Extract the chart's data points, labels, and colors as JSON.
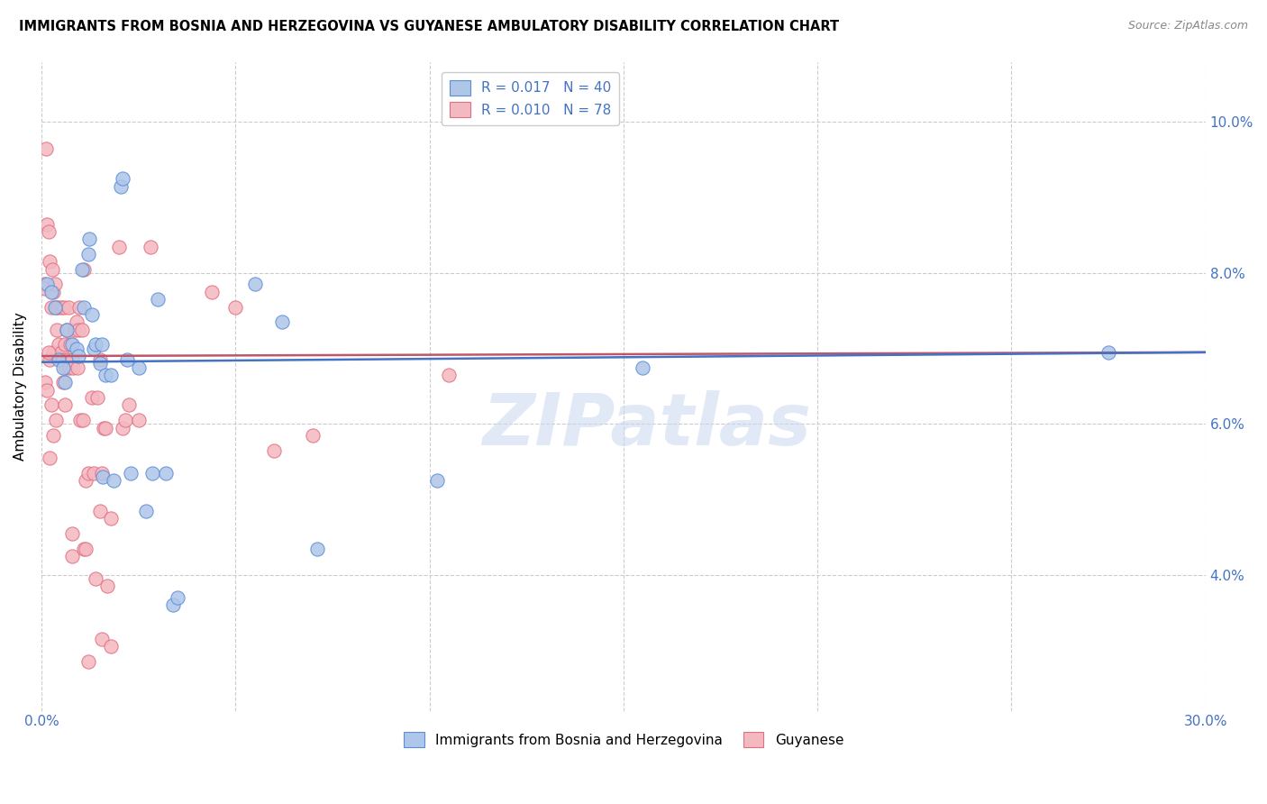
{
  "title": "IMMIGRANTS FROM BOSNIA AND HERZEGOVINA VS GUYANESE AMBULATORY DISABILITY CORRELATION CHART",
  "source": "Source: ZipAtlas.com",
  "ylabel": "Ambulatory Disability",
  "y_ticks": [
    4.0,
    6.0,
    8.0,
    10.0
  ],
  "y_tick_labels": [
    "4.0%",
    "6.0%",
    "8.0%",
    "10.0%"
  ],
  "x_range": [
    0.0,
    30.0
  ],
  "y_range": [
    2.2,
    10.8
  ],
  "watermark": "ZIPatlas",
  "legend_blue_label": "R = 0.017   N = 40",
  "legend_pink_label": "R = 0.010   N = 78",
  "legend_bottom_blue": "Immigrants from Bosnia and Herzegovina",
  "legend_bottom_pink": "Guyanese",
  "blue_color": "#AEC6E8",
  "pink_color": "#F4B8C1",
  "blue_edge_color": "#5B8DD9",
  "pink_edge_color": "#E07080",
  "blue_line_color": "#4472C4",
  "pink_line_color": "#C0566A",
  "blue_trend": [
    6.82,
    6.95
  ],
  "pink_trend": [
    6.9,
    6.95
  ],
  "blue_scatter": [
    [
      0.15,
      7.85
    ],
    [
      0.25,
      7.75
    ],
    [
      0.35,
      7.55
    ],
    [
      0.45,
      6.85
    ],
    [
      0.55,
      6.75
    ],
    [
      0.6,
      6.55
    ],
    [
      0.65,
      7.25
    ],
    [
      0.8,
      7.05
    ],
    [
      0.9,
      7.0
    ],
    [
      0.95,
      6.9
    ],
    [
      1.05,
      8.05
    ],
    [
      1.1,
      7.55
    ],
    [
      1.2,
      8.25
    ],
    [
      1.22,
      8.45
    ],
    [
      1.3,
      7.45
    ],
    [
      1.35,
      7.0
    ],
    [
      1.4,
      7.05
    ],
    [
      1.5,
      6.8
    ],
    [
      1.55,
      7.05
    ],
    [
      1.58,
      5.3
    ],
    [
      1.65,
      6.65
    ],
    [
      1.8,
      6.65
    ],
    [
      1.85,
      5.25
    ],
    [
      2.05,
      9.15
    ],
    [
      2.1,
      9.25
    ],
    [
      2.2,
      6.85
    ],
    [
      2.3,
      5.35
    ],
    [
      2.5,
      6.75
    ],
    [
      2.7,
      4.85
    ],
    [
      2.85,
      5.35
    ],
    [
      3.0,
      7.65
    ],
    [
      3.2,
      5.35
    ],
    [
      3.4,
      3.6
    ],
    [
      3.5,
      3.7
    ],
    [
      5.5,
      7.85
    ],
    [
      6.2,
      7.35
    ],
    [
      7.1,
      4.35
    ],
    [
      10.2,
      5.25
    ],
    [
      15.5,
      6.75
    ],
    [
      27.5,
      6.95
    ]
  ],
  "pink_scatter": [
    [
      0.08,
      7.85
    ],
    [
      0.1,
      7.8
    ],
    [
      0.12,
      9.65
    ],
    [
      0.15,
      8.65
    ],
    [
      0.18,
      8.55
    ],
    [
      0.2,
      8.15
    ],
    [
      0.22,
      6.85
    ],
    [
      0.25,
      7.55
    ],
    [
      0.28,
      8.05
    ],
    [
      0.3,
      7.75
    ],
    [
      0.3,
      6.95
    ],
    [
      0.35,
      7.85
    ],
    [
      0.38,
      7.55
    ],
    [
      0.4,
      7.25
    ],
    [
      0.42,
      7.55
    ],
    [
      0.45,
      7.05
    ],
    [
      0.5,
      6.95
    ],
    [
      0.52,
      7.55
    ],
    [
      0.55,
      6.85
    ],
    [
      0.58,
      7.55
    ],
    [
      0.6,
      7.05
    ],
    [
      0.62,
      6.75
    ],
    [
      0.65,
      7.25
    ],
    [
      0.68,
      6.85
    ],
    [
      0.7,
      7.55
    ],
    [
      0.72,
      6.75
    ],
    [
      0.75,
      7.05
    ],
    [
      0.78,
      4.55
    ],
    [
      0.8,
      6.85
    ],
    [
      0.82,
      6.75
    ],
    [
      0.85,
      7.25
    ],
    [
      0.9,
      7.35
    ],
    [
      0.92,
      6.75
    ],
    [
      0.95,
      7.25
    ],
    [
      0.98,
      7.55
    ],
    [
      1.0,
      6.05
    ],
    [
      1.05,
      7.25
    ],
    [
      1.08,
      6.05
    ],
    [
      1.1,
      8.05
    ],
    [
      1.15,
      5.25
    ],
    [
      1.2,
      5.35
    ],
    [
      1.3,
      6.35
    ],
    [
      1.35,
      5.35
    ],
    [
      1.4,
      3.95
    ],
    [
      1.45,
      6.35
    ],
    [
      1.5,
      6.85
    ],
    [
      1.55,
      5.35
    ],
    [
      1.6,
      5.95
    ],
    [
      1.65,
      5.95
    ],
    [
      1.7,
      3.85
    ],
    [
      2.0,
      8.35
    ],
    [
      2.1,
      5.95
    ],
    [
      2.15,
      6.05
    ],
    [
      2.25,
      6.25
    ],
    [
      2.8,
      8.35
    ],
    [
      4.4,
      7.75
    ],
    [
      5.0,
      7.55
    ],
    [
      6.0,
      5.65
    ],
    [
      7.0,
      5.85
    ],
    [
      10.5,
      6.65
    ],
    [
      0.18,
      6.95
    ],
    [
      0.25,
      6.25
    ],
    [
      0.3,
      5.85
    ],
    [
      0.38,
      6.05
    ],
    [
      0.8,
      4.25
    ],
    [
      1.1,
      4.35
    ],
    [
      1.15,
      4.35
    ],
    [
      1.5,
      4.85
    ],
    [
      1.8,
      4.75
    ],
    [
      0.1,
      6.55
    ],
    [
      0.15,
      6.45
    ],
    [
      0.2,
      5.55
    ],
    [
      0.55,
      6.55
    ],
    [
      0.6,
      6.25
    ],
    [
      1.55,
      3.15
    ],
    [
      1.8,
      3.05
    ],
    [
      1.2,
      2.85
    ],
    [
      2.5,
      6.05
    ]
  ]
}
